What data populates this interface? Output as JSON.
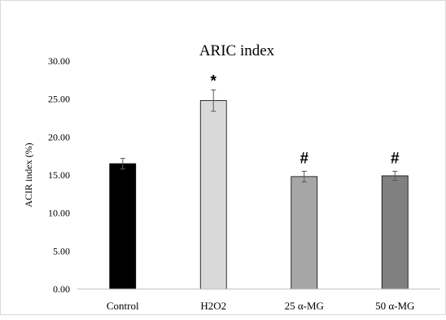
{
  "chart_data": {
    "type": "bar",
    "title": "ARIC index",
    "ylabel": "ACIR index (%)",
    "xlabel": "",
    "categories": [
      "Control",
      "H2O2",
      "25 α-MG",
      "50 α-MG"
    ],
    "values": [
      16.5,
      24.8,
      14.8,
      14.9
    ],
    "errors": [
      0.7,
      1.4,
      0.7,
      0.6
    ],
    "significance": [
      "",
      "*",
      "#",
      "#"
    ],
    "bar_colors": [
      "#000000",
      "#d9d9d9",
      "#a6a6a6",
      "#808080"
    ],
    "ylim": [
      0,
      30
    ],
    "yticks": [
      "0.00",
      "5.00",
      "10.00",
      "15.00",
      "20.00",
      "25.00",
      "30.00"
    ],
    "grid": false,
    "legend": "none"
  }
}
